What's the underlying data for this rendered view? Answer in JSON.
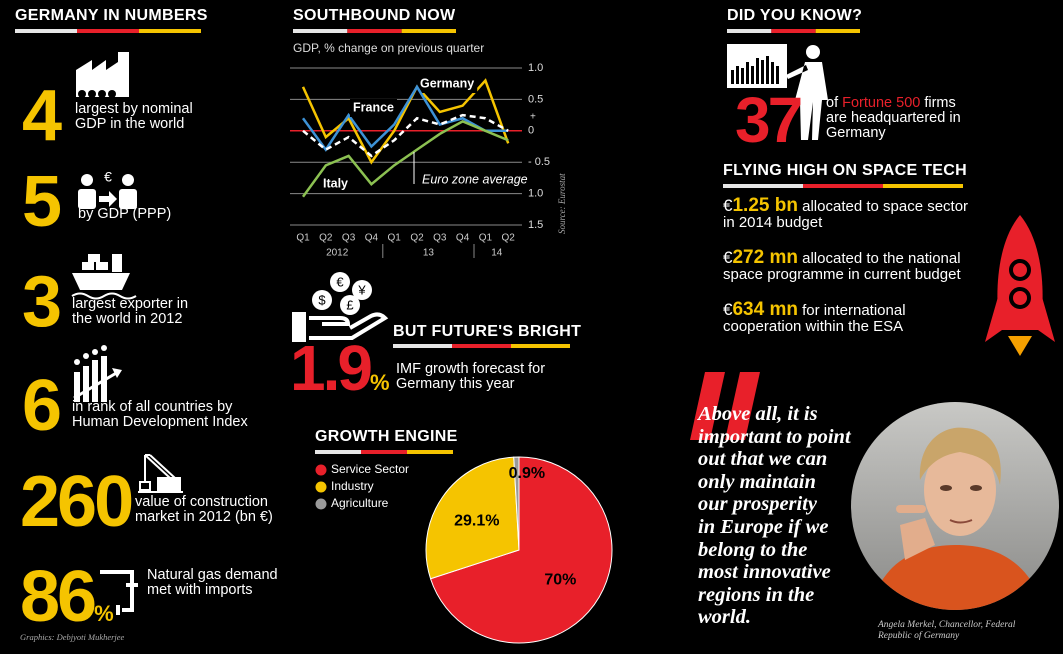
{
  "numbers": {
    "title": "GERMANY IN NUMBERS",
    "items": [
      {
        "value": 4,
        "text": "largest by nominal GDP in the world"
      },
      {
        "value": 5,
        "text": "by GDP (PPP)"
      },
      {
        "value": 3,
        "text": "largest exporter in the world in 2012"
      },
      {
        "value": 6,
        "text": "in rank of all countries by Human Development Index"
      },
      {
        "value": 260,
        "text": "value of construction market in 2012 (bn €)"
      },
      {
        "value": 86,
        "unit": "%",
        "text": "Natural gas demand met with imports"
      }
    ],
    "credit": "Graphics: Debjyoti Mukherjee"
  },
  "chart_data": [
    {
      "type": "line",
      "title": "SOUTHBOUND NOW",
      "subtitle": "GDP, % change on previous quarter",
      "categories": [
        "Q1",
        "Q2",
        "Q3",
        "Q4",
        "Q1",
        "Q2",
        "Q3",
        "Q4",
        "Q1",
        "Q2"
      ],
      "year_labels": [
        "2012",
        "13",
        "14"
      ],
      "series": [
        {
          "name": "Germany",
          "color": "#f5c400",
          "values": [
            0.7,
            -0.1,
            0.2,
            -0.5,
            0.0,
            0.7,
            0.3,
            0.4,
            0.8,
            -0.2
          ]
        },
        {
          "name": "France",
          "color": "#3d92d6",
          "values": [
            0.2,
            -0.3,
            0.25,
            -0.25,
            0.1,
            0.7,
            0.1,
            0.2,
            0.0,
            0.0
          ]
        },
        {
          "name": "Italy",
          "color": "#8cc152",
          "values": [
            -1.05,
            -0.55,
            -0.4,
            -0.85,
            -0.55,
            -0.3,
            -0.05,
            0.15,
            0.0,
            -0.15
          ]
        },
        {
          "name": "Euro zone average",
          "color": "#ffffff",
          "style": "dashed",
          "values": [
            0.0,
            -0.3,
            -0.1,
            -0.4,
            -0.15,
            0.2,
            0.1,
            0.25,
            0.2,
            0.0
          ]
        }
      ],
      "ylim": [
        -1.5,
        1.0
      ],
      "yticks": [
        {
          "value": 1.0,
          "label": "1.0"
        },
        {
          "value": 0.5,
          "label": "0.5"
        },
        0,
        {
          "value": -0.5,
          "label": "- 0.5"
        },
        {
          "value": -1.0,
          "label": "1.0"
        },
        {
          "value": -1.5,
          "label": "1.5"
        }
      ],
      "zero_sign": "+",
      "zero_color": "#e8202a",
      "grid": true,
      "source": "Source: Eurostat"
    },
    {
      "type": "pie",
      "title": "GROWTH ENGINE",
      "categories": [
        "Service Sector",
        "Industry",
        "Agriculture"
      ],
      "values": [
        70,
        29.1,
        0.9
      ],
      "value_labels": [
        "70%",
        "29.1%",
        "0.9%"
      ],
      "colors": [
        "#e8202a",
        "#f5c400",
        "#9a9a9a"
      ],
      "legend": "top-left"
    }
  ],
  "future": {
    "title": "BUT FUTURE'S BRIGHT",
    "value": 1.9,
    "unit": "%",
    "text": "IMF growth forecast for Germany this year"
  },
  "did_you_know": {
    "title": "DID YOU KNOW?",
    "value": 37,
    "text_parts": [
      "of ",
      "Fortune 500",
      " firms are headquartered in Germany"
    ]
  },
  "space": {
    "title": "FLYING HIGH ON  SPACE TECH",
    "items": [
      {
        "currency": "€",
        "amount": "1.25 bn",
        "text": "allocated to space sector in 2014 budget"
      },
      {
        "currency": "€",
        "amount": "272 mn",
        "text": "allocated to the national space programme in current budget"
      },
      {
        "currency": "€",
        "amount": "634 mn",
        "text": "for international cooperation within the ESA"
      }
    ]
  },
  "quote": {
    "lines": [
      "Above all, it is",
      "important to point",
      "out that we can",
      "only maintain",
      "our prosperity",
      "in Europe if we",
      "belong to the",
      "most innovative",
      "regions in the",
      "world."
    ],
    "attribution": "Angela Merkel, Chancellor, Federal Republic of Germany"
  }
}
